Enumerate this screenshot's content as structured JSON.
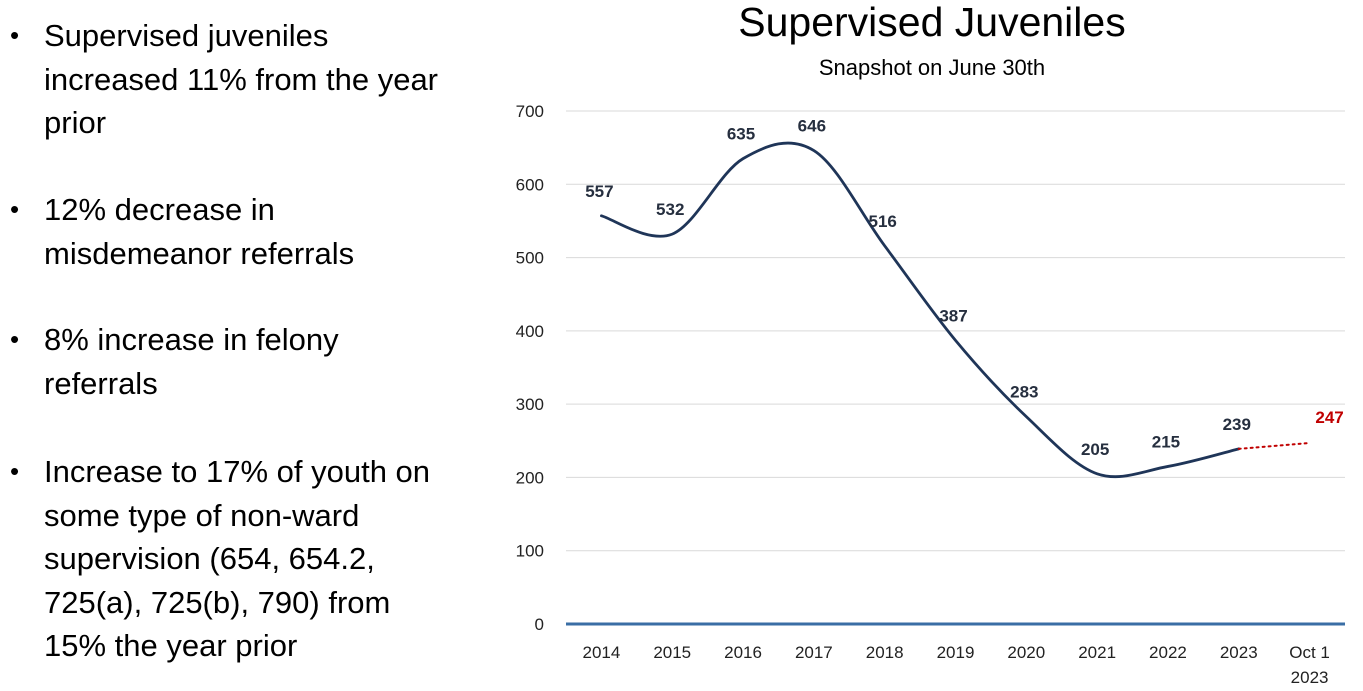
{
  "bullets": [
    "Supervised juveniles increased 11% from the year prior",
    "12% decrease in misdemeanor referrals",
    "8% increase in felony referrals",
    "Increase to 17% of youth on some type of non-ward supervision (654, 654.2, 725(a), 725(b), 790) from 15% the year prior"
  ],
  "chart_data": {
    "type": "line",
    "title": "Supervised Juveniles",
    "subtitle": "Snapshot on June 30th",
    "xlabel": "",
    "ylabel": "",
    "ylim": [
      0,
      700
    ],
    "yticks": [
      0,
      100,
      200,
      300,
      400,
      500,
      600,
      700
    ],
    "grid": true,
    "categories": [
      "2014",
      "2015",
      "2016",
      "2017",
      "2018",
      "2019",
      "2020",
      "2021",
      "2022",
      "2023",
      "Oct 1 2023"
    ],
    "category_lines": [
      [
        "2014"
      ],
      [
        "2015"
      ],
      [
        "2016"
      ],
      [
        "2017"
      ],
      [
        "2018"
      ],
      [
        "2019"
      ],
      [
        "2020"
      ],
      [
        "2021"
      ],
      [
        "2022"
      ],
      [
        "2023"
      ],
      [
        "Oct 1",
        "2023"
      ]
    ],
    "series": [
      {
        "name": "Supervised Juveniles",
        "values": [
          557,
          532,
          635,
          646,
          516,
          387,
          283,
          205,
          215,
          239,
          null
        ],
        "labels": [
          "557",
          "532",
          "635",
          "646",
          "516",
          "387",
          "283",
          "205",
          "215",
          "239",
          ""
        ],
        "color": "#1f3558",
        "style": "solid"
      },
      {
        "name": "Oct 1 2023 projection",
        "values": [
          null,
          null,
          null,
          null,
          null,
          null,
          null,
          null,
          null,
          239,
          247
        ],
        "labels": [
          "",
          "",
          "",
          "",
          "",
          "",
          "",
          "",
          "",
          "",
          "247"
        ],
        "color": "#c00000",
        "style": "dotted"
      }
    ],
    "colors": {
      "main_line": "#1f3558",
      "projection": "#c00000",
      "axis": "#3a6ea5",
      "grid": "#d9d9d9",
      "label_text": "#262f3f",
      "projection_label": "#c00000"
    }
  }
}
